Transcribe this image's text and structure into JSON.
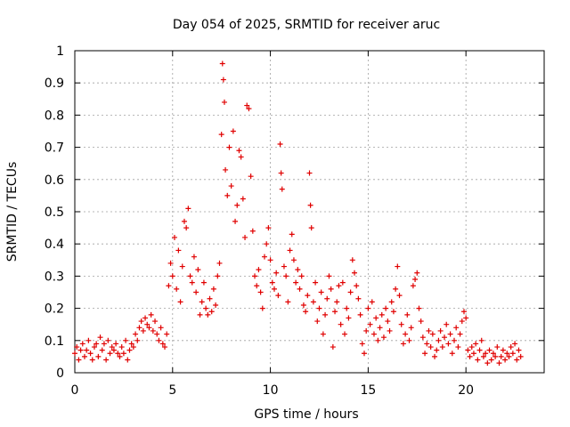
{
  "chart_data": {
    "type": "scatter",
    "title": "Day 054 of 2025, SRMTID for receiver aruc",
    "xlabel": "GPS time / hours",
    "ylabel": "SRMTID / TECUs",
    "xlim": [
      0,
      24
    ],
    "ylim": [
      0,
      1
    ],
    "grid": true,
    "marker": "+",
    "x_ticks": [
      {
        "value": 0,
        "label": "0"
      },
      {
        "value": 5,
        "label": "5"
      },
      {
        "value": 10,
        "label": "10"
      },
      {
        "value": 15,
        "label": "15"
      },
      {
        "value": 20,
        "label": "20"
      }
    ],
    "y_ticks": [
      {
        "value": 0,
        "label": "0"
      },
      {
        "value": 0.1,
        "label": "0.1"
      },
      {
        "value": 0.2,
        "label": "0.2"
      },
      {
        "value": 0.3,
        "label": "0.3"
      },
      {
        "value": 0.4,
        "label": "0.4"
      },
      {
        "value": 0.5,
        "label": "0.5"
      },
      {
        "value": 0.6,
        "label": "0.6"
      },
      {
        "value": 0.7,
        "label": "0.7"
      },
      {
        "value": 0.8,
        "label": "0.8"
      },
      {
        "value": 0.9,
        "label": "0.9"
      },
      {
        "value": 1,
        "label": "1"
      }
    ],
    "series": [
      {
        "name": "SRMTID",
        "color": "#e00000",
        "points": [
          [
            0.0,
            0.06
          ],
          [
            0.1,
            0.08
          ],
          [
            0.2,
            0.04
          ],
          [
            0.3,
            0.07
          ],
          [
            0.4,
            0.09
          ],
          [
            0.5,
            0.05
          ],
          [
            0.6,
            0.07
          ],
          [
            0.7,
            0.1
          ],
          [
            0.8,
            0.06
          ],
          [
            0.9,
            0.04
          ],
          [
            1.0,
            0.08
          ],
          [
            1.1,
            0.09
          ],
          [
            1.2,
            0.05
          ],
          [
            1.3,
            0.11
          ],
          [
            1.4,
            0.07
          ],
          [
            1.5,
            0.09
          ],
          [
            1.6,
            0.04
          ],
          [
            1.7,
            0.1
          ],
          [
            1.8,
            0.06
          ],
          [
            1.9,
            0.08
          ],
          [
            2.0,
            0.07
          ],
          [
            2.1,
            0.09
          ],
          [
            2.2,
            0.06
          ],
          [
            2.3,
            0.05
          ],
          [
            2.4,
            0.08
          ],
          [
            2.5,
            0.06
          ],
          [
            2.6,
            0.1
          ],
          [
            2.7,
            0.04
          ],
          [
            2.8,
            0.07
          ],
          [
            2.9,
            0.09
          ],
          [
            3.0,
            0.08
          ],
          [
            3.1,
            0.12
          ],
          [
            3.2,
            0.1
          ],
          [
            3.3,
            0.14
          ],
          [
            3.4,
            0.16
          ],
          [
            3.5,
            0.13
          ],
          [
            3.6,
            0.17
          ],
          [
            3.7,
            0.15
          ],
          [
            3.8,
            0.14
          ],
          [
            3.9,
            0.18
          ],
          [
            4.0,
            0.13
          ],
          [
            4.1,
            0.16
          ],
          [
            4.2,
            0.12
          ],
          [
            4.3,
            0.1
          ],
          [
            4.4,
            0.14
          ],
          [
            4.5,
            0.09
          ],
          [
            4.6,
            0.08
          ],
          [
            4.7,
            0.12
          ],
          [
            4.8,
            0.27
          ],
          [
            4.9,
            0.34
          ],
          [
            5.0,
            0.3
          ],
          [
            5.1,
            0.42
          ],
          [
            5.2,
            0.26
          ],
          [
            5.3,
            0.38
          ],
          [
            5.4,
            0.22
          ],
          [
            5.5,
            0.33
          ],
          [
            5.6,
            0.47
          ],
          [
            5.7,
            0.45
          ],
          [
            5.8,
            0.51
          ],
          [
            5.9,
            0.3
          ],
          [
            6.0,
            0.28
          ],
          [
            6.1,
            0.36
          ],
          [
            6.2,
            0.25
          ],
          [
            6.3,
            0.32
          ],
          [
            6.4,
            0.18
          ],
          [
            6.5,
            0.22
          ],
          [
            6.6,
            0.28
          ],
          [
            6.7,
            0.2
          ],
          [
            6.8,
            0.18
          ],
          [
            6.9,
            0.23
          ],
          [
            7.0,
            0.19
          ],
          [
            7.1,
            0.26
          ],
          [
            7.2,
            0.21
          ],
          [
            7.3,
            0.3
          ],
          [
            7.4,
            0.34
          ],
          [
            7.5,
            0.74
          ],
          [
            7.55,
            0.96
          ],
          [
            7.6,
            0.91
          ],
          [
            7.65,
            0.84
          ],
          [
            7.7,
            0.63
          ],
          [
            7.8,
            0.55
          ],
          [
            7.9,
            0.7
          ],
          [
            8.0,
            0.58
          ],
          [
            8.1,
            0.75
          ],
          [
            8.2,
            0.47
          ],
          [
            8.3,
            0.52
          ],
          [
            8.4,
            0.69
          ],
          [
            8.5,
            0.67
          ],
          [
            8.6,
            0.54
          ],
          [
            8.7,
            0.42
          ],
          [
            8.8,
            0.83
          ],
          [
            8.9,
            0.82
          ],
          [
            9.0,
            0.61
          ],
          [
            9.1,
            0.44
          ],
          [
            9.2,
            0.3
          ],
          [
            9.3,
            0.27
          ],
          [
            9.4,
            0.32
          ],
          [
            9.5,
            0.25
          ],
          [
            9.6,
            0.2
          ],
          [
            9.7,
            0.36
          ],
          [
            9.8,
            0.4
          ],
          [
            9.9,
            0.45
          ],
          [
            10.0,
            0.35
          ],
          [
            10.1,
            0.28
          ],
          [
            10.2,
            0.26
          ],
          [
            10.3,
            0.31
          ],
          [
            10.4,
            0.24
          ],
          [
            10.5,
            0.71
          ],
          [
            10.55,
            0.62
          ],
          [
            10.6,
            0.57
          ],
          [
            10.7,
            0.33
          ],
          [
            10.8,
            0.3
          ],
          [
            10.9,
            0.22
          ],
          [
            11.0,
            0.38
          ],
          [
            11.1,
            0.43
          ],
          [
            11.2,
            0.35
          ],
          [
            11.3,
            0.28
          ],
          [
            11.4,
            0.32
          ],
          [
            11.5,
            0.26
          ],
          [
            11.6,
            0.3
          ],
          [
            11.7,
            0.21
          ],
          [
            11.8,
            0.19
          ],
          [
            11.9,
            0.24
          ],
          [
            12.0,
            0.62
          ],
          [
            12.05,
            0.52
          ],
          [
            12.1,
            0.45
          ],
          [
            12.2,
            0.22
          ],
          [
            12.3,
            0.28
          ],
          [
            12.4,
            0.16
          ],
          [
            12.5,
            0.2
          ],
          [
            12.6,
            0.25
          ],
          [
            12.7,
            0.12
          ],
          [
            12.8,
            0.18
          ],
          [
            12.9,
            0.23
          ],
          [
            13.0,
            0.3
          ],
          [
            13.1,
            0.26
          ],
          [
            13.2,
            0.08
          ],
          [
            13.3,
            0.19
          ],
          [
            13.4,
            0.22
          ],
          [
            13.5,
            0.27
          ],
          [
            13.6,
            0.15
          ],
          [
            13.7,
            0.28
          ],
          [
            13.8,
            0.12
          ],
          [
            13.9,
            0.2
          ],
          [
            14.0,
            0.17
          ],
          [
            14.1,
            0.25
          ],
          [
            14.2,
            0.35
          ],
          [
            14.3,
            0.31
          ],
          [
            14.4,
            0.27
          ],
          [
            14.5,
            0.23
          ],
          [
            14.6,
            0.18
          ],
          [
            14.7,
            0.09
          ],
          [
            14.8,
            0.06
          ],
          [
            14.9,
            0.13
          ],
          [
            15.0,
            0.2
          ],
          [
            15.1,
            0.15
          ],
          [
            15.2,
            0.22
          ],
          [
            15.3,
            0.12
          ],
          [
            15.4,
            0.17
          ],
          [
            15.5,
            0.1
          ],
          [
            15.6,
            0.14
          ],
          [
            15.7,
            0.18
          ],
          [
            15.8,
            0.11
          ],
          [
            15.9,
            0.2
          ],
          [
            16.0,
            0.16
          ],
          [
            16.1,
            0.13
          ],
          [
            16.2,
            0.22
          ],
          [
            16.3,
            0.19
          ],
          [
            16.4,
            0.26
          ],
          [
            16.5,
            0.33
          ],
          [
            16.6,
            0.24
          ],
          [
            16.7,
            0.15
          ],
          [
            16.8,
            0.09
          ],
          [
            16.9,
            0.12
          ],
          [
            17.0,
            0.18
          ],
          [
            17.1,
            0.1
          ],
          [
            17.2,
            0.14
          ],
          [
            17.3,
            0.27
          ],
          [
            17.4,
            0.29
          ],
          [
            17.5,
            0.31
          ],
          [
            17.6,
            0.2
          ],
          [
            17.7,
            0.16
          ],
          [
            17.8,
            0.11
          ],
          [
            17.9,
            0.06
          ],
          [
            18.0,
            0.09
          ],
          [
            18.1,
            0.13
          ],
          [
            18.2,
            0.08
          ],
          [
            18.3,
            0.12
          ],
          [
            18.4,
            0.05
          ],
          [
            18.5,
            0.07
          ],
          [
            18.6,
            0.1
          ],
          [
            18.7,
            0.13
          ],
          [
            18.8,
            0.08
          ],
          [
            18.9,
            0.11
          ],
          [
            19.0,
            0.15
          ],
          [
            19.1,
            0.09
          ],
          [
            19.2,
            0.12
          ],
          [
            19.3,
            0.06
          ],
          [
            19.4,
            0.1
          ],
          [
            19.5,
            0.14
          ],
          [
            19.6,
            0.08
          ],
          [
            19.7,
            0.12
          ],
          [
            19.8,
            0.16
          ],
          [
            19.9,
            0.19
          ],
          [
            20.0,
            0.17
          ],
          [
            20.1,
            0.07
          ],
          [
            20.2,
            0.05
          ],
          [
            20.3,
            0.08
          ],
          [
            20.4,
            0.06
          ],
          [
            20.5,
            0.09
          ],
          [
            20.6,
            0.04
          ],
          [
            20.7,
            0.07
          ],
          [
            20.8,
            0.1
          ],
          [
            20.9,
            0.05
          ],
          [
            21.0,
            0.06
          ],
          [
            21.1,
            0.03
          ],
          [
            21.2,
            0.07
          ],
          [
            21.3,
            0.04
          ],
          [
            21.4,
            0.06
          ],
          [
            21.5,
            0.05
          ],
          [
            21.6,
            0.08
          ],
          [
            21.7,
            0.03
          ],
          [
            21.8,
            0.05
          ],
          [
            21.9,
            0.07
          ],
          [
            22.0,
            0.04
          ],
          [
            22.1,
            0.06
          ],
          [
            22.2,
            0.05
          ],
          [
            22.3,
            0.08
          ],
          [
            22.4,
            0.06
          ],
          [
            22.5,
            0.09
          ],
          [
            22.6,
            0.04
          ],
          [
            22.7,
            0.07
          ],
          [
            22.8,
            0.05
          ]
        ]
      }
    ]
  }
}
